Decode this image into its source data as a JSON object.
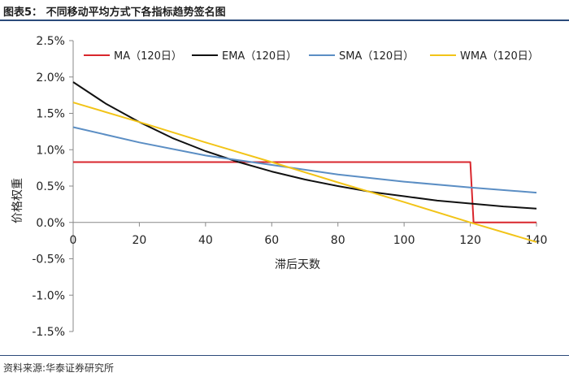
{
  "figure": {
    "title": "图表5：  不同移动平均方式下各指标趋势签名图",
    "source": "资料来源:华泰证券研究所"
  },
  "chart_data": {
    "type": "line",
    "xlabel": "滞后天数",
    "ylabel": "价格权重",
    "xlim": [
      0,
      140
    ],
    "ylim": [
      -1.5,
      2.5
    ],
    "xticks": [
      0,
      20,
      40,
      60,
      80,
      100,
      120,
      140
    ],
    "yticks": [
      2.5,
      2.0,
      1.5,
      1.0,
      0.5,
      0.0,
      -0.5,
      -1.0,
      -1.5
    ],
    "ytick_labels": [
      "2.5%",
      "2.0%",
      "1.5%",
      "1.0%",
      "0.5%",
      "0.0%",
      "-0.5%",
      "-1.0%",
      "-1.5%"
    ],
    "legend_position": "top",
    "grid": false,
    "series": [
      {
        "name": "MA（120日）",
        "color": "#d9262c",
        "x": [
          0,
          20,
          40,
          60,
          80,
          100,
          120,
          121,
          140
        ],
        "y": [
          0.83,
          0.83,
          0.83,
          0.83,
          0.83,
          0.83,
          0.83,
          0.0,
          0.0
        ]
      },
      {
        "name": "EMA（120日）",
        "color": "#111111",
        "x": [
          0,
          10,
          20,
          30,
          40,
          50,
          60,
          70,
          80,
          90,
          100,
          110,
          120,
          130,
          140
        ],
        "y": [
          1.93,
          1.63,
          1.38,
          1.16,
          0.98,
          0.83,
          0.7,
          0.59,
          0.5,
          0.42,
          0.36,
          0.3,
          0.26,
          0.22,
          0.19
        ]
      },
      {
        "name": "SMA（120日）",
        "color": "#5b8ec4",
        "x": [
          0,
          20,
          40,
          60,
          80,
          100,
          120,
          140
        ],
        "y": [
          1.31,
          1.1,
          0.92,
          0.79,
          0.66,
          0.56,
          0.48,
          0.41
        ]
      },
      {
        "name": "WMA（120日）",
        "color": "#f2c418",
        "x": [
          0,
          20,
          40,
          60,
          80,
          100,
          120,
          140
        ],
        "y": [
          1.65,
          1.38,
          1.1,
          0.83,
          0.55,
          0.28,
          0.0,
          -0.27
        ]
      }
    ]
  }
}
